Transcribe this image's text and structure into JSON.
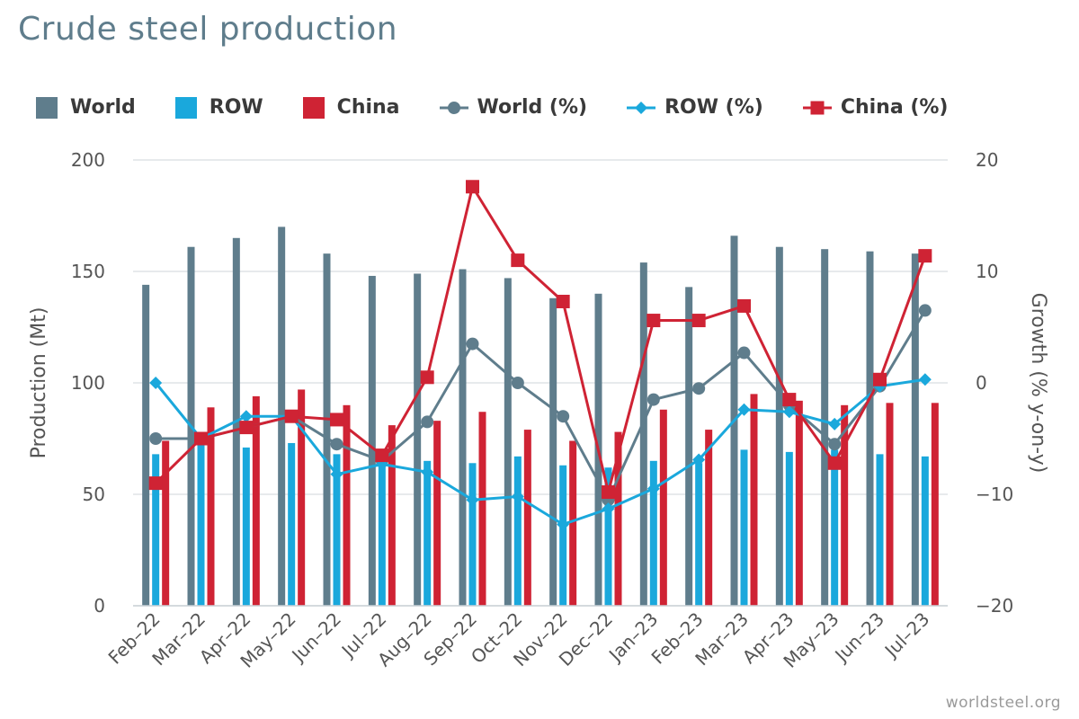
{
  "page": {
    "title": "Crude steel production",
    "credit": "worldsteel.org"
  },
  "colors": {
    "world": "#5f7d8c",
    "row": "#1aa8dc",
    "china": "#cf2334",
    "grid": "#dfe3e6",
    "text": "#555555"
  },
  "chart_data": {
    "type": "bar",
    "title": "Crude steel production",
    "categories": [
      "Feb-22",
      "Mar-22",
      "Apr-22",
      "May-22",
      "Jun-22",
      "Jul-22",
      "Aug-22",
      "Sep-22",
      "Oct-22",
      "Nov-22",
      "Dec-22",
      "Jan-23",
      "Feb-23",
      "Mar-23",
      "Apr-23",
      "May-23",
      "Jun-23",
      "Jul-23"
    ],
    "ylabel_left": "Production (Mt)",
    "ylabel_right": "Growth (% y-on-y)",
    "ylim_left": [
      0,
      200
    ],
    "yticks_left": [
      0,
      50,
      100,
      150,
      200
    ],
    "ylim_right": [
      -20,
      20
    ],
    "yticks_right": [
      -20,
      -10,
      0,
      10,
      20
    ],
    "grid": true,
    "legend": "top",
    "series": [
      {
        "name": "World",
        "type": "bar",
        "axis": "left",
        "color": "#5f7d8c",
        "values": [
          144,
          161,
          165,
          170,
          158,
          148,
          149,
          151,
          147,
          138,
          140,
          154,
          143,
          166,
          161,
          160,
          159,
          158
        ]
      },
      {
        "name": "ROW",
        "type": "bar",
        "axis": "left",
        "color": "#1aa8dc",
        "values": [
          68,
          73,
          71,
          73,
          68,
          68,
          65,
          64,
          67,
          63,
          62,
          65,
          64,
          70,
          69,
          70,
          68,
          67
        ]
      },
      {
        "name": "China",
        "type": "bar",
        "axis": "left",
        "color": "#cf2334",
        "values": [
          74,
          89,
          94,
          97,
          90,
          81,
          83,
          87,
          79,
          74,
          78,
          88,
          79,
          95,
          92,
          90,
          91,
          91
        ]
      },
      {
        "name": "World (%)",
        "type": "line",
        "axis": "right",
        "color": "#5f7d8c",
        "marker": "circle",
        "values": [
          -5.0,
          -5.0,
          -4.0,
          -3.0,
          -5.5,
          -7.0,
          -3.5,
          3.5,
          0.0,
          -3.0,
          -10.5,
          -1.5,
          -0.5,
          2.7,
          -2.0,
          -5.5,
          -0.3,
          6.5
        ]
      },
      {
        "name": "ROW (%)",
        "type": "line",
        "axis": "right",
        "color": "#1aa8dc",
        "marker": "diamond",
        "values": [
          0.0,
          -5.0,
          -3.0,
          -3.0,
          -8.2,
          -7.3,
          -8.0,
          -10.5,
          -10.2,
          -12.7,
          -11.3,
          -9.5,
          -6.9,
          -2.4,
          -2.6,
          -3.7,
          -0.3,
          0.3
        ]
      },
      {
        "name": "China (%)",
        "type": "line",
        "axis": "right",
        "color": "#cf2334",
        "marker": "square",
        "values": [
          -9.0,
          -5.0,
          -4.0,
          -3.0,
          -3.3,
          -6.5,
          0.5,
          17.6,
          11.0,
          7.3,
          -9.8,
          5.6,
          5.6,
          6.9,
          -1.5,
          -7.2,
          0.3,
          11.4
        ]
      }
    ]
  }
}
